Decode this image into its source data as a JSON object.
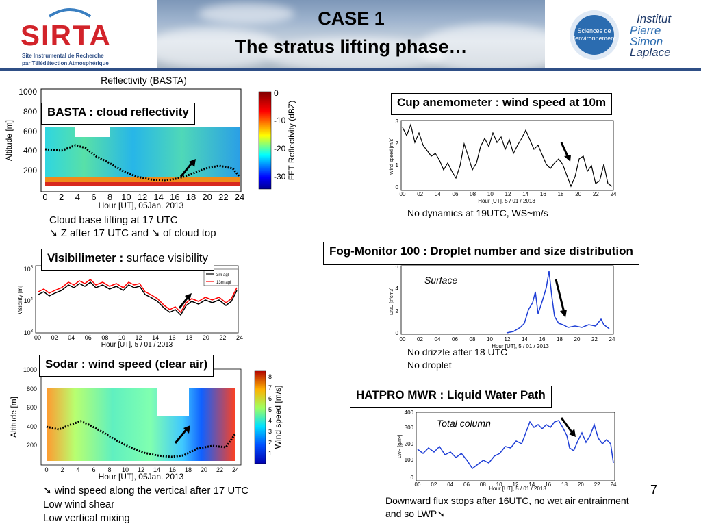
{
  "header": {
    "title_line1": "CASE 1",
    "title_line2": "The stratus lifting phase…",
    "left_logo_text": "SIRTA",
    "left_logo_sub1": "Site Instrumental de Recherche",
    "left_logo_sub2": "par Télédétection Atmosphérique",
    "right_logo_circle_line1": "Sciences de",
    "right_logo_circle_line2": "l'environnement",
    "right_logo_line1": "Institut",
    "right_logo_line2": "Pierre",
    "right_logo_line3": "Simon",
    "right_logo_line4": "Laplace"
  },
  "basta": {
    "plot_title": "Reflectivity (BASTA)",
    "box_label": "BASTA : cloud reflectivity",
    "ylabel": "Altitude [m]",
    "xlabel": "Hour [UT], 05Jan. 2013",
    "xticks": [
      "0",
      "2",
      "4",
      "6",
      "8",
      "10",
      "12",
      "14",
      "16",
      "18",
      "20",
      "22",
      "24"
    ],
    "yticks": [
      "1000",
      "800",
      "600",
      "400",
      "200"
    ],
    "colorbar_label": "FFT Reflectivity (dBZ)",
    "colorbar_ticks": [
      "0",
      "-10",
      "-20",
      "-30"
    ],
    "caption_line1": "Cloud base lifting at 17 UTC",
    "caption_line2_arrow": "➘",
    "caption_line2a": " Z after 17 UTC and ",
    "caption_line2_arrow2": "➘",
    "caption_line2b": "  of cloud top"
  },
  "visibilimeter": {
    "box_bold": "Visibilimeter : ",
    "box_normal": "surface visibility",
    "ylabel": "Visibility [m]",
    "xlabel": "Hour [UT],  5 / 01 / 2013",
    "xticks": [
      "00",
      "02",
      "04",
      "06",
      "08",
      "10",
      "12",
      "14",
      "16",
      "18",
      "20",
      "22",
      "24"
    ],
    "ytick_top": "10",
    "ytick_top_exp": "5",
    "ytick_mid": "10",
    "ytick_mid_exp": "4",
    "ytick_bot": "10",
    "ytick_bot_exp": "3",
    "legend_1": "3m agl",
    "legend_2": "13m agl"
  },
  "sodar": {
    "box_label": "Sodar : wind speed (clear air)",
    "ylabel": "Altitude [m]",
    "xlabel": "Hour [UT], 05Jan. 2013",
    "xticks": [
      "0",
      "2",
      "4",
      "6",
      "8",
      "10",
      "12",
      "14",
      "16",
      "18",
      "20",
      "22",
      "24"
    ],
    "yticks": [
      "1000",
      "800",
      "600",
      "400",
      "200"
    ],
    "colorbar_label": "Wind speed [m/s]",
    "colorbar_ticks": [
      "8",
      "7",
      "6",
      "5",
      "4",
      "3",
      "2",
      "1"
    ],
    "caption_line1_arrow": "➘",
    "caption_line1": " wind speed along the vertical after 17 UTC",
    "caption_line2": "Low wind shear",
    "caption_line3": "Low vertical mixing"
  },
  "cup": {
    "box_label": "Cup anemometer : wind speed at 10m",
    "ylabel": "Wind speed [m/s]",
    "xlabel": "Hour [UT],  5 / 01 / 2013",
    "xticks": [
      "00",
      "02",
      "04",
      "06",
      "08",
      "10",
      "12",
      "14",
      "16",
      "18",
      "20",
      "22",
      "24"
    ],
    "yticks": [
      "3",
      "2",
      "1",
      "0"
    ],
    "caption": "No dynamics at 19UTC, WS~m/s"
  },
  "fog": {
    "box_label": "Fog-Monitor 100 : Droplet number and size distribution",
    "annotation": "Surface",
    "ylabel": "DNC [#/cm3]",
    "xlabel": "Hour [UT],  5 / 01 / 2013",
    "xticks": [
      "00",
      "02",
      "04",
      "06",
      "08",
      "10",
      "12",
      "14",
      "16",
      "18",
      "20",
      "22",
      "24"
    ],
    "yticks": [
      "6",
      "4",
      "2",
      "0"
    ],
    "caption_line1": "No drizzle after 18 UTC",
    "caption_line2": "No droplet"
  },
  "hatpro": {
    "box_label": "HATPRO MWR : Liquid Water Path",
    "annotation": "Total column",
    "ylabel": "LWP [g/m²]",
    "xlabel": "Hour [UT],  5 / 01 / 2013",
    "xticks": [
      "00",
      "02",
      "04",
      "06",
      "08",
      "10",
      "12",
      "14",
      "16",
      "18",
      "20",
      "22",
      "24"
    ],
    "yticks": [
      "400",
      "300",
      "200",
      "100",
      "0"
    ],
    "caption_line1": "Downward flux stops after 16UTC, no wet air entrainment",
    "caption_line2": "and so LWP",
    "caption_arrow": "➘"
  },
  "footer": {
    "page_number": "7"
  }
}
